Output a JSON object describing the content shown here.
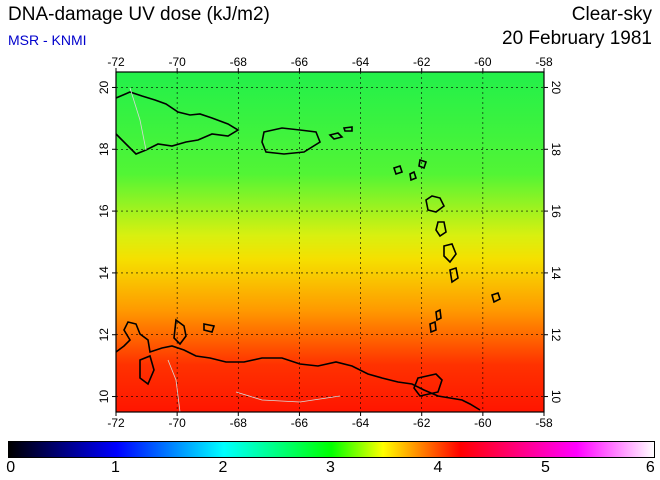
{
  "header": {
    "title": "DNA-damage UV dose (kJ/m2)",
    "subtitle": "MSR - KNMI",
    "mode": "Clear-sky",
    "date": "20 February 1981"
  },
  "map": {
    "lon_ticks": [
      "-72",
      "-70",
      "-68",
      "-66",
      "-64",
      "-62",
      "-60",
      "-58"
    ],
    "lat_ticks": [
      "10",
      "12",
      "14",
      "16",
      "18",
      "20"
    ],
    "lon_range": [
      -72,
      -58
    ],
    "lat_range": [
      9.5,
      20.5
    ],
    "grid": true
  },
  "colorbar": {
    "labels": [
      "0",
      "1",
      "2",
      "3",
      "4",
      "5",
      "6"
    ],
    "range": [
      0,
      6
    ]
  }
}
